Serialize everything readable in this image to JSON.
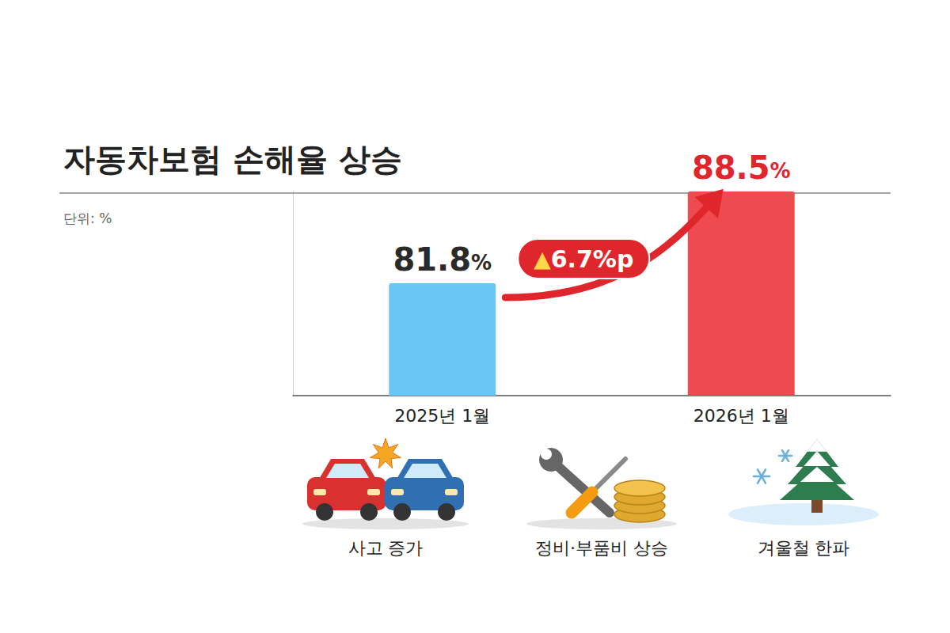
{
  "chart_data": {
    "type": "bar",
    "title": "자동차보험 손해율 상승",
    "subtitle": "단위: %",
    "categories": [
      "2025년 1월",
      "2026년 1월"
    ],
    "values": [
      81.8,
      88.5
    ],
    "value_labels": [
      "81.8%",
      "88.5%"
    ],
    "colors": [
      "#6ac6f5",
      "#ee4a4f"
    ],
    "ylim": [
      73.6,
      88.5
    ],
    "tick_labels": "x",
    "grid": false,
    "data_labels": true,
    "annotation": "▲6.7%p",
    "factors": [
      "사고 증가",
      "정비·부품비 상승",
      "겨울철 한파"
    ]
  }
}
